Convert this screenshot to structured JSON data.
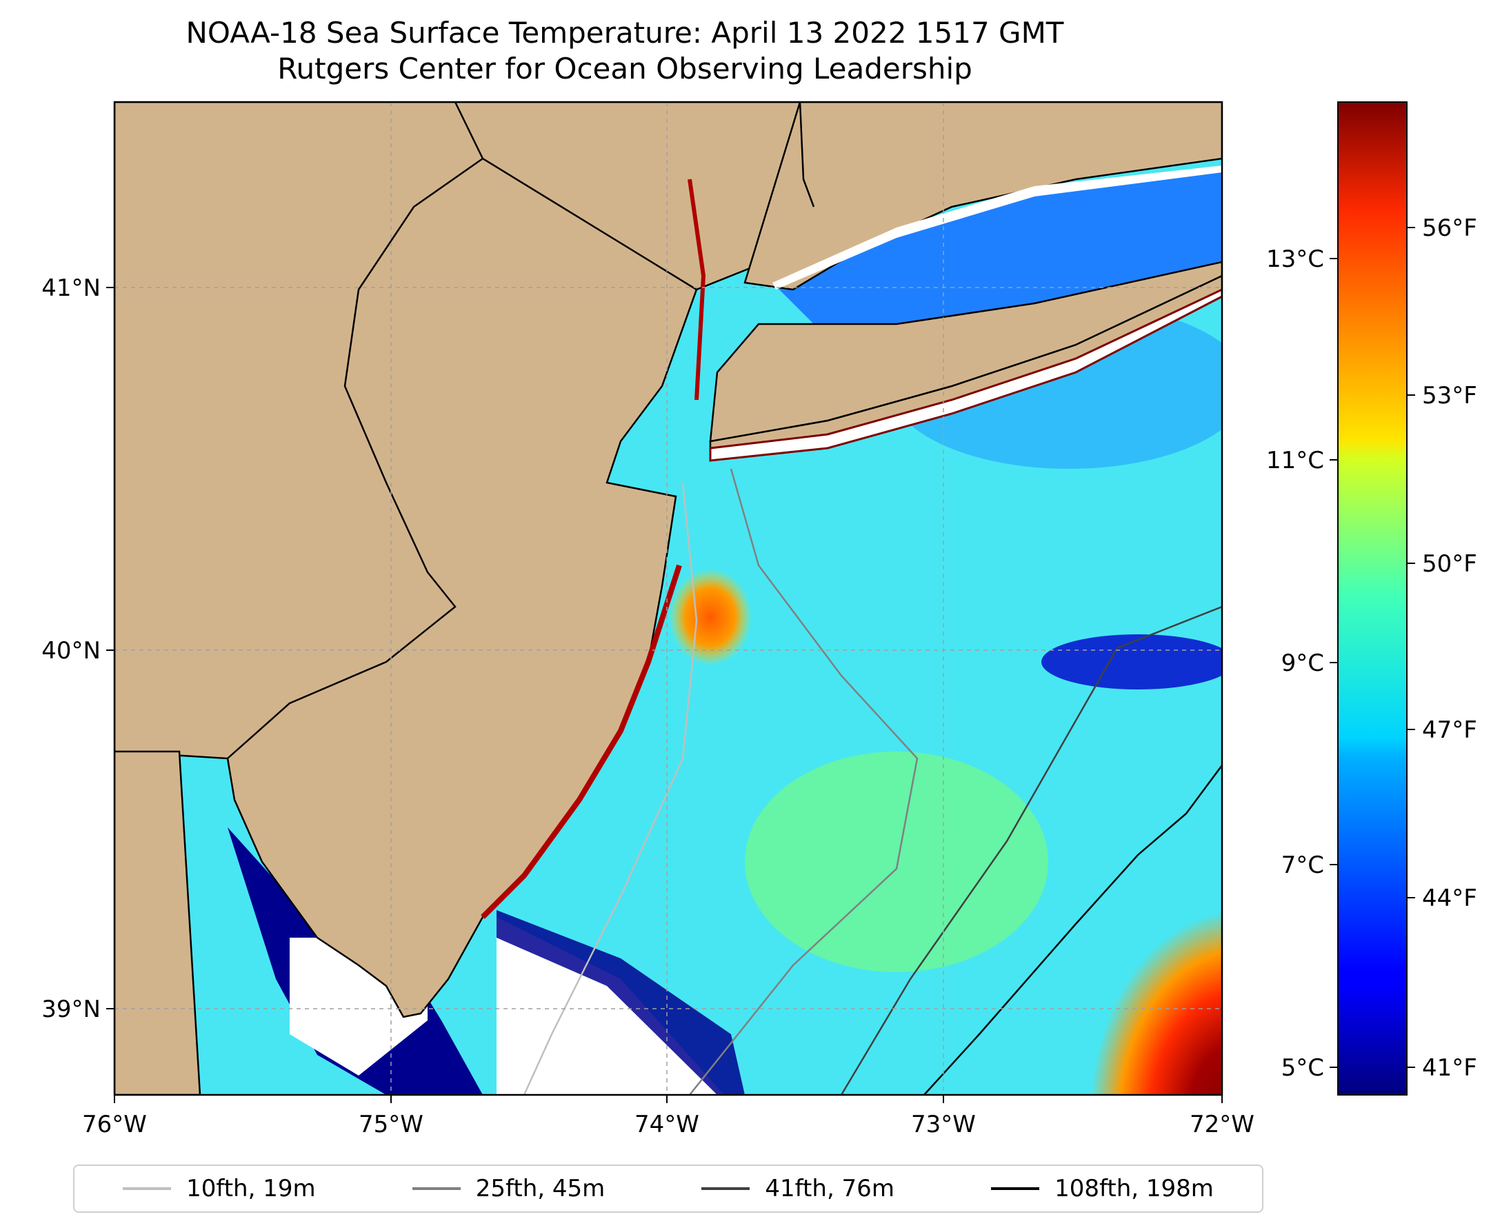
{
  "title": {
    "line1": "NOAA-18 Sea Surface Temperature: April 13 2022 1517 GMT",
    "line2": "Rutgers Center for Ocean Observing Leadership"
  },
  "map": {
    "lon_range": [
      -76,
      -72
    ],
    "lat_range": [
      38.7,
      41.5
    ],
    "x_ticks": [
      "76°W",
      "75°W",
      "74°W",
      "73°W",
      "72°W"
    ],
    "y_ticks": [
      "39°N",
      "40°N",
      "41°N"
    ],
    "land_color": "#d2b48c",
    "gridlines": true
  },
  "colorbar": {
    "colormap": "jet",
    "celsius_ticks": [
      "5°C",
      "7°C",
      "9°C",
      "11°C",
      "13°C"
    ],
    "fahrenheit_ticks": [
      "41°F",
      "44°F",
      "47°F",
      "50°F",
      "53°F",
      "56°F"
    ]
  },
  "legend": {
    "items": [
      {
        "label": "10fth, 19m",
        "color": "#bfbfbf"
      },
      {
        "label": "25fth, 45m",
        "color": "#808080"
      },
      {
        "label": "41fth, 76m",
        "color": "#404040"
      },
      {
        "label": "108fth, 198m",
        "color": "#000000"
      }
    ]
  }
}
